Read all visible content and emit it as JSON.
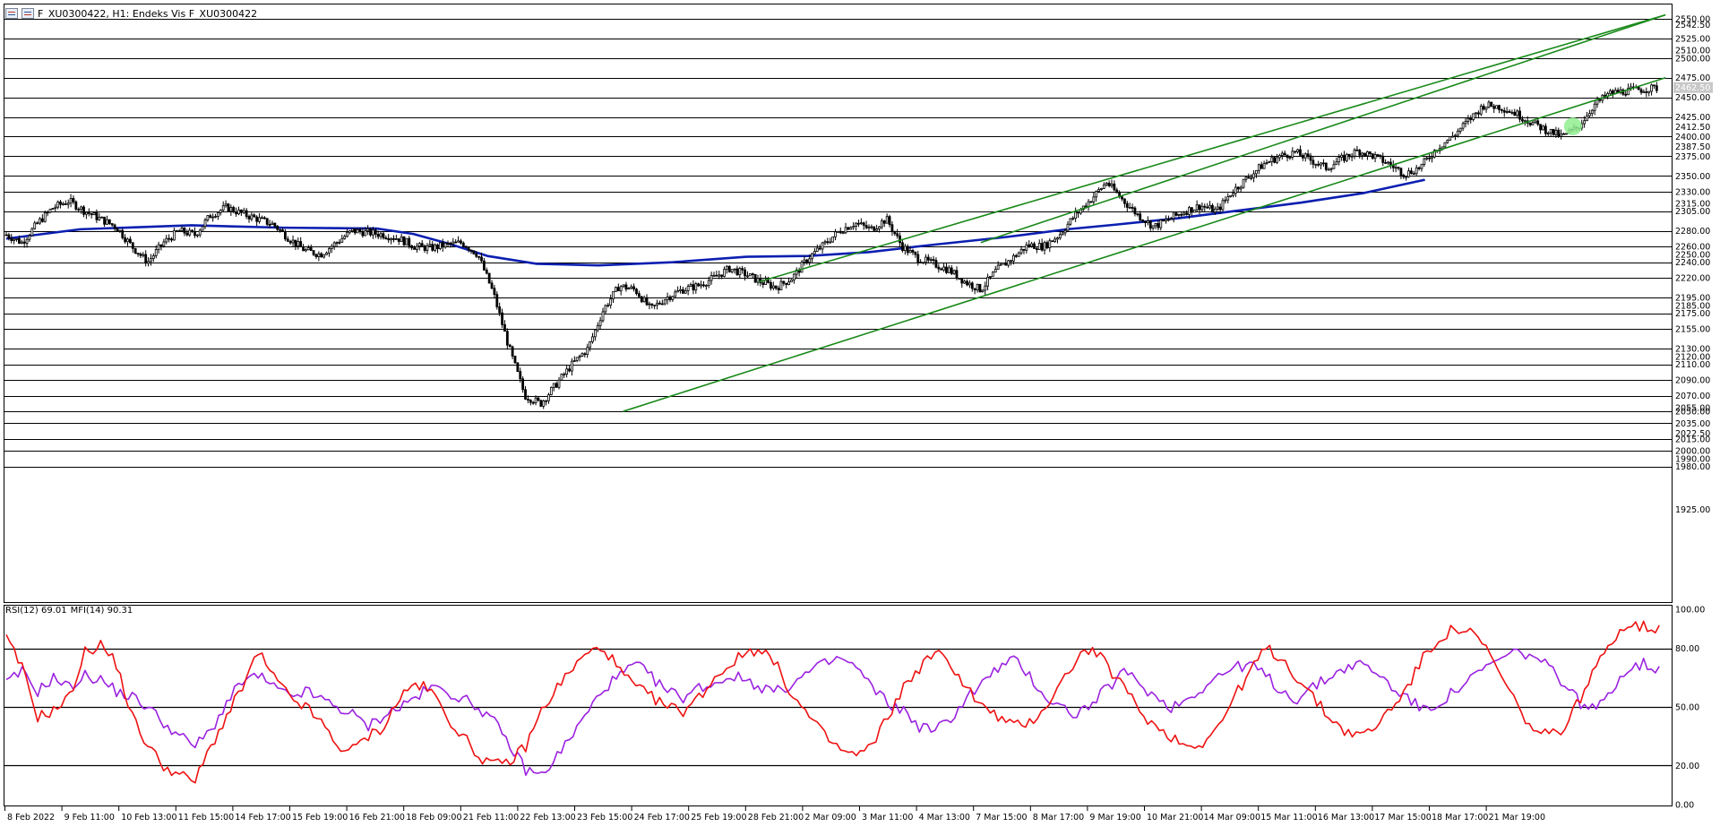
{
  "window": {
    "title": "F_XU0300422, H1:  Endeks Vis F_XU0300422"
  },
  "indicator": {
    "rsi_label": "RSI(12) 69.01",
    "mfi_label": "MFI(14) 90.31"
  },
  "colors": {
    "candle": "#000000",
    "moving_average": "#0b1fb0",
    "channel": "#1a8a1a",
    "rsi": "#ee1111",
    "mfi": "#9b22e0",
    "grid": "#000000",
    "marker": "#90ee90"
  },
  "chart_data": [
    {
      "type": "candlestick",
      "title": "F_XU0300422, H1:  Endeks Vis F_XU0300422",
      "price_axis_labels": [
        "2550.00",
        "2542.50",
        "2525.00",
        "2510.00",
        "2500.00",
        "2475.00",
        "2462.50",
        "2450.00",
        "2425.00",
        "2412.50",
        "2400.00",
        "2387.50",
        "2375.00",
        "2350.00",
        "2330.00",
        "2315.00",
        "2305.00",
        "2280.00",
        "2260.00",
        "2250.00",
        "2240.00",
        "2220.00",
        "2195.00",
        "2185.00",
        "2175.00",
        "2155.00",
        "2130.00",
        "2120.00",
        "2110.00",
        "2090.00",
        "2070.00",
        "2055.00",
        "2050.00",
        "2035.00",
        "2022.50",
        "2015.00",
        "2000.00",
        "1990.00",
        "1980.00",
        "1925.00"
      ],
      "horizontal_levels": [
        2550,
        2525,
        2500,
        2475,
        2450,
        2425,
        2400,
        2375,
        2350,
        2330,
        2305,
        2280,
        2260,
        2240,
        2220,
        2195,
        2175,
        2155,
        2130,
        2110,
        2090,
        2070,
        2050,
        2035,
        2015,
        2000,
        1980
      ],
      "current_price": 2462.5,
      "time_axis_labels": [
        "8 Feb 2022",
        "9 Feb 11:00",
        "10 Feb 13:00",
        "11 Feb 15:00",
        "14 Feb 17:00",
        "15 Feb 19:00",
        "16 Feb 21:00",
        "18 Feb 09:00",
        "21 Feb 11:00",
        "22 Feb 13:00",
        "23 Feb 15:00",
        "24 Feb 17:00",
        "25 Feb 19:00",
        "28 Feb 21:00",
        "2 Mar 09:00",
        "3 Mar 11:00",
        "4 Mar 13:00",
        "7 Mar 15:00",
        "8 Mar 17:00",
        "9 Mar 19:00",
        "10 Mar 21:00",
        "14 Mar 09:00",
        "15 Mar 11:00",
        "16 Mar 13:00",
        "17 Mar 15:00",
        "18 Mar 17:00",
        "21 Mar 19:00"
      ],
      "close_path": [
        2275,
        2265,
        2290,
        2310,
        2318,
        2305,
        2295,
        2285,
        2260,
        2240,
        2265,
        2280,
        2275,
        2300,
        2310,
        2302,
        2295,
        2288,
        2270,
        2255,
        2250,
        2265,
        2280,
        2278,
        2275,
        2270,
        2260,
        2258,
        2262,
        2265,
        2250,
        2200,
        2130,
        2070,
        2060,
        2085,
        2110,
        2130,
        2180,
        2210,
        2205,
        2180,
        2195,
        2205,
        2210,
        2220,
        2232,
        2225,
        2215,
        2208,
        2220,
        2245,
        2262,
        2280,
        2290,
        2282,
        2295,
        2260,
        2245,
        2238,
        2230,
        2215,
        2205,
        2230,
        2245,
        2262,
        2260,
        2275,
        2300,
        2320,
        2342,
        2320,
        2300,
        2285,
        2295,
        2305,
        2312,
        2305,
        2330,
        2348,
        2365,
        2375,
        2380,
        2370,
        2360,
        2372,
        2382,
        2375,
        2365,
        2352,
        2362,
        2385,
        2400,
        2420,
        2440,
        2438,
        2430,
        2418,
        2408,
        2400,
        2412,
        2440,
        2455,
        2458,
        2460,
        2462
      ],
      "moving_average": [
        [
          0,
          2270
        ],
        [
          0.12,
          2282
        ],
        [
          0.3,
          2287
        ],
        [
          0.45,
          2284
        ],
        [
          0.6,
          2283
        ],
        [
          0.66,
          2276
        ],
        [
          0.72,
          2263
        ],
        [
          0.78,
          2248
        ],
        [
          0.86,
          2238
        ],
        [
          0.96,
          2236
        ],
        [
          1.08,
          2240
        ],
        [
          1.2,
          2247
        ],
        [
          1.3,
          2248
        ],
        [
          1.4,
          2253
        ],
        [
          1.5,
          2262
        ],
        [
          1.62,
          2272
        ],
        [
          1.72,
          2282
        ],
        [
          1.8,
          2288
        ],
        [
          1.9,
          2296
        ],
        [
          2.0,
          2306
        ],
        [
          2.1,
          2316
        ],
        [
          2.2,
          2328
        ],
        [
          2.3,
          2345
        ]
      ],
      "channel_upper": [
        [
          1.58,
          2265
        ],
        [
          2.69,
          2555
        ]
      ],
      "channel_lower": [
        [
          1.0,
          2050
        ],
        [
          2.69,
          2475
        ]
      ],
      "channel_inner_upper": [
        [
          1.22,
          2215
        ],
        [
          2.69,
          2555
        ]
      ]
    },
    {
      "type": "line",
      "title": "RSI(12) 69.01 MFI(14) 90.31",
      "axis_labels": [
        "100.00",
        "80.00",
        "50.00",
        "20.00",
        "0.00"
      ],
      "levels": [
        80,
        50,
        20
      ],
      "ylim": [
        0,
        100
      ],
      "series": [
        {
          "name": "RSI(12)",
          "last": 69.01,
          "values": [
            62,
            68,
            58,
            65,
            60,
            66,
            64,
            58,
            55,
            50,
            42,
            35,
            30,
            38,
            52,
            63,
            66,
            60,
            55,
            58,
            54,
            50,
            46,
            40,
            46,
            50,
            55,
            60,
            58,
            54,
            50,
            42,
            30,
            18,
            15,
            25,
            36,
            48,
            60,
            66,
            72,
            65,
            58,
            55,
            60,
            62,
            66,
            64,
            60,
            58,
            62,
            68,
            72,
            75,
            70,
            60,
            52,
            48,
            40,
            38,
            44,
            55,
            62,
            70,
            74,
            66,
            55,
            50,
            46,
            52,
            60,
            68,
            62,
            55,
            50,
            54,
            60,
            66,
            70,
            72,
            66,
            58,
            54,
            60,
            65,
            70,
            72,
            68,
            60,
            55,
            48,
            52,
            58,
            64,
            70,
            75,
            78,
            76,
            70,
            62,
            52,
            48,
            60,
            70,
            72,
            69
          ]
        },
        {
          "name": "MFI(14)",
          "last": 90.31,
          "values": [
            85,
            70,
            45,
            48,
            55,
            78,
            82,
            72,
            45,
            30,
            20,
            15,
            12,
            30,
            45,
            60,
            78,
            65,
            55,
            50,
            42,
            30,
            28,
            35,
            40,
            55,
            62,
            58,
            45,
            35,
            25,
            20,
            22,
            30,
            48,
            60,
            70,
            78,
            80,
            68,
            60,
            55,
            50,
            48,
            55,
            65,
            72,
            78,
            80,
            70,
            55,
            45,
            35,
            28,
            25,
            30,
            45,
            60,
            70,
            78,
            72,
            60,
            50,
            45,
            40,
            42,
            50,
            62,
            75,
            80,
            70,
            60,
            48,
            40,
            35,
            30,
            32,
            40,
            55,
            68,
            80,
            75,
            65,
            55,
            45,
            38,
            35,
            40,
            50,
            60,
            75,
            85,
            90,
            88,
            80,
            65,
            50,
            38,
            35,
            40,
            55,
            70,
            85,
            93,
            91,
            90
          ]
        }
      ]
    }
  ]
}
